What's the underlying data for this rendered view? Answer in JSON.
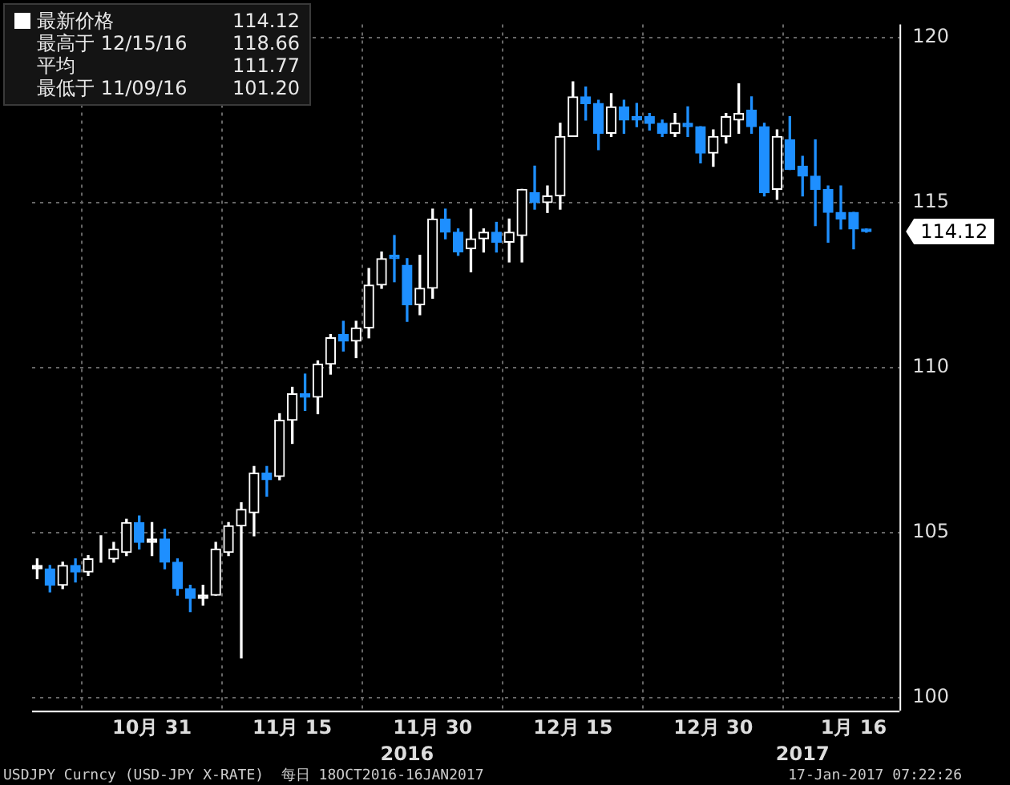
{
  "chart_data": {
    "type": "candlestick",
    "categories": [
      null,
      null,
      null,
      null,
      null,
      null,
      null,
      null,
      null,
      "10月 31",
      null,
      null,
      null,
      null,
      null,
      null,
      null,
      null,
      null,
      null,
      "11月 15",
      null,
      null,
      null,
      null,
      null,
      null,
      null,
      null,
      null,
      null,
      "11月 30",
      null,
      null,
      null,
      null,
      null,
      null,
      null,
      null,
      null,
      null,
      "12月 15",
      null,
      null,
      null,
      null,
      null,
      null,
      null,
      null,
      null,
      null,
      "12月 30",
      null,
      null,
      null,
      null,
      null,
      null,
      null,
      null,
      null,
      null,
      "1月 16",
      null
    ],
    "ohlc": [
      [
        103.9,
        104.2,
        103.6,
        104.0
      ],
      [
        103.9,
        104.0,
        103.2,
        103.4
      ],
      [
        103.4,
        104.1,
        103.3,
        104.0
      ],
      [
        104.0,
        104.2,
        103.5,
        103.8
      ],
      [
        103.8,
        104.3,
        103.7,
        104.2
      ],
      [
        104.2,
        104.9,
        104.1,
        104.2
      ],
      [
        104.2,
        104.7,
        104.1,
        104.5
      ],
      [
        104.4,
        105.4,
        104.3,
        105.3
      ],
      [
        105.3,
        105.5,
        104.5,
        104.7
      ],
      [
        104.7,
        105.3,
        104.3,
        104.8
      ],
      [
        104.8,
        105.1,
        103.9,
        104.1
      ],
      [
        104.1,
        104.2,
        103.1,
        103.3
      ],
      [
        103.3,
        103.4,
        102.6,
        103.0
      ],
      [
        103.0,
        103.4,
        102.8,
        103.1
      ],
      [
        103.1,
        104.7,
        103.1,
        104.5
      ],
      [
        104.4,
        105.3,
        104.3,
        105.2
      ],
      [
        105.2,
        105.9,
        101.2,
        105.7
      ],
      [
        105.6,
        107.0,
        104.9,
        106.8
      ],
      [
        106.8,
        107.0,
        106.1,
        106.6
      ],
      [
        106.7,
        108.6,
        106.6,
        108.4
      ],
      [
        108.4,
        109.4,
        107.7,
        109.2
      ],
      [
        109.2,
        109.8,
        108.7,
        109.1
      ],
      [
        109.1,
        110.2,
        108.6,
        110.1
      ],
      [
        110.1,
        111.0,
        109.8,
        110.9
      ],
      [
        111.0,
        111.4,
        110.5,
        110.8
      ],
      [
        110.8,
        111.4,
        110.3,
        111.2
      ],
      [
        111.2,
        113.0,
        110.9,
        112.5
      ],
      [
        112.5,
        113.5,
        112.4,
        113.3
      ],
      [
        113.4,
        114.0,
        112.6,
        113.3
      ],
      [
        113.1,
        113.3,
        111.4,
        111.9
      ],
      [
        111.9,
        113.4,
        111.6,
        112.4
      ],
      [
        112.4,
        114.8,
        112.1,
        114.5
      ],
      [
        114.5,
        114.8,
        113.9,
        114.1
      ],
      [
        114.1,
        114.2,
        113.4,
        113.5
      ],
      [
        113.6,
        114.8,
        112.9,
        113.9
      ],
      [
        113.9,
        114.2,
        113.5,
        114.1
      ],
      [
        114.1,
        114.4,
        113.5,
        113.8
      ],
      [
        113.8,
        114.5,
        113.2,
        114.1
      ],
      [
        114.0,
        115.4,
        113.2,
        115.4
      ],
      [
        115.3,
        116.1,
        114.8,
        115.0
      ],
      [
        115.0,
        115.5,
        114.7,
        115.2
      ],
      [
        115.2,
        117.4,
        114.8,
        117.0
      ],
      [
        117.0,
        118.66,
        117.0,
        118.2
      ],
      [
        118.2,
        118.5,
        117.5,
        118.0
      ],
      [
        118.0,
        118.1,
        116.6,
        117.1
      ],
      [
        117.1,
        118.3,
        117.0,
        117.9
      ],
      [
        117.9,
        118.1,
        117.1,
        117.5
      ],
      [
        117.6,
        118.0,
        117.3,
        117.5
      ],
      [
        117.6,
        117.7,
        117.2,
        117.4
      ],
      [
        117.4,
        117.5,
        117.0,
        117.1
      ],
      [
        117.1,
        117.7,
        117.0,
        117.4
      ],
      [
        117.4,
        117.9,
        117.0,
        117.3
      ],
      [
        117.3,
        117.3,
        116.2,
        116.5
      ],
      [
        116.5,
        117.2,
        116.1,
        117.0
      ],
      [
        117.0,
        117.7,
        116.8,
        117.6
      ],
      [
        117.5,
        118.6,
        117.1,
        117.7
      ],
      [
        117.8,
        118.2,
        117.1,
        117.3
      ],
      [
        117.3,
        117.4,
        115.2,
        115.3
      ],
      [
        115.4,
        117.2,
        115.1,
        117.0
      ],
      [
        116.9,
        117.6,
        116.0,
        116.0
      ],
      [
        116.1,
        116.4,
        115.2,
        115.8
      ],
      [
        115.8,
        116.9,
        114.3,
        115.4
      ],
      [
        115.4,
        115.5,
        113.8,
        114.7
      ],
      [
        114.7,
        115.5,
        114.2,
        114.5
      ],
      [
        114.7,
        114.7,
        113.6,
        114.2
      ],
      [
        114.2,
        114.2,
        114.1,
        114.12
      ]
    ],
    "colors": [
      "#ffffff",
      "#1e8fff",
      "#ffffff",
      "#1e8fff",
      "#ffffff",
      "#ffffff",
      "#ffffff",
      "#ffffff",
      "#1e8fff",
      "#ffffff",
      "#1e8fff",
      "#1e8fff",
      "#1e8fff",
      "#ffffff",
      "#ffffff",
      "#ffffff",
      "#ffffff",
      "#ffffff",
      "#1e8fff",
      "#ffffff",
      "#ffffff",
      "#1e8fff",
      "#ffffff",
      "#ffffff",
      "#1e8fff",
      "#ffffff",
      "#ffffff",
      "#ffffff",
      "#1e8fff",
      "#1e8fff",
      "#ffffff",
      "#ffffff",
      "#1e8fff",
      "#1e8fff",
      "#ffffff",
      "#ffffff",
      "#1e8fff",
      "#ffffff",
      "#ffffff",
      "#1e8fff",
      "#ffffff",
      "#ffffff",
      "#ffffff",
      "#1e8fff",
      "#1e8fff",
      "#ffffff",
      "#1e8fff",
      "#1e8fff",
      "#1e8fff",
      "#1e8fff",
      "#ffffff",
      "#1e8fff",
      "#1e8fff",
      "#ffffff",
      "#ffffff",
      "#ffffff",
      "#1e8fff",
      "#1e8fff",
      "#ffffff",
      "#1e8fff",
      "#1e8fff",
      "#1e8fff",
      "#1e8fff",
      "#1e8fff",
      "#1e8fff",
      "#1e8fff"
    ],
    "ylim": [
      99.6,
      120.4
    ],
    "yticks": [
      100,
      105,
      110,
      115,
      120
    ],
    "grid": true,
    "annotations": [
      "最新价格",
      "114.12",
      "最高于 12/15/16",
      "118.66",
      "平均",
      "111.77",
      "最低于 11/09/16",
      "101.20",
      "114.12",
      "2016",
      "2017",
      "USDJPY Curncy (USD-JPY X-RATE)  每日 18OCT2016-16JAN2017",
      "17-Jan-2017 07:22:26"
    ]
  }
}
